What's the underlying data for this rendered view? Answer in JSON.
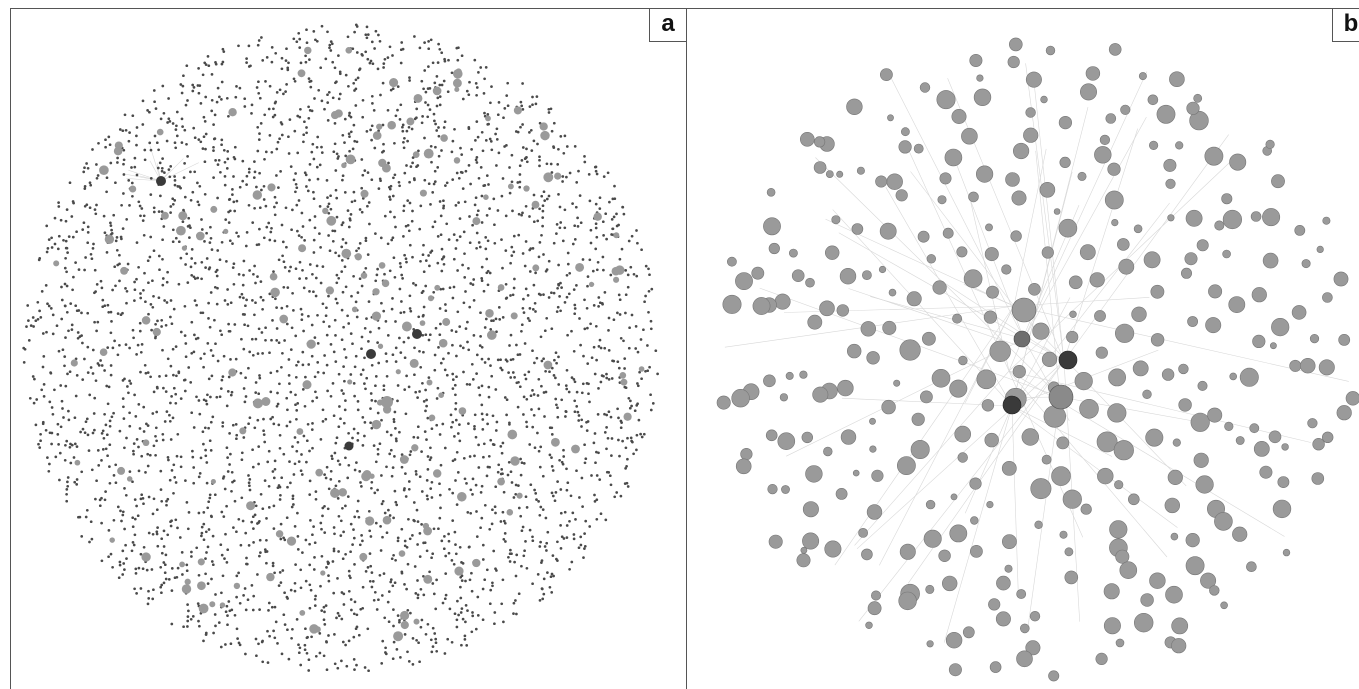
{
  "figure": {
    "panels": [
      {
        "id": "a",
        "label": "a"
      },
      {
        "id": "b",
        "label": "b"
      }
    ]
  },
  "colors": {
    "background": "#ffffff",
    "border": "#555555",
    "tiny_node": "#4a4a4a",
    "gray_node": "#9a9a9a",
    "dark_node": "#3a3a3a",
    "edge": "#d8d8d8"
  }
}
